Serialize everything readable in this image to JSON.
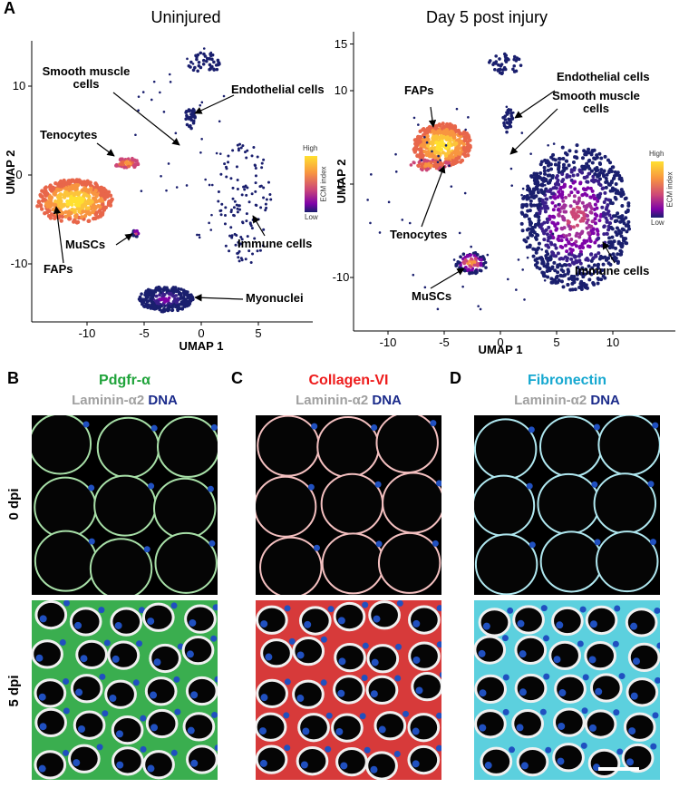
{
  "panel_a": {
    "letter": "A",
    "uninjured": {
      "title": "Uninjured",
      "xlabel": "UMAP 1",
      "ylabel": "UMAP 2",
      "xticks": [
        -10,
        -5,
        0,
        5
      ],
      "yticks": [
        10,
        0,
        -10
      ],
      "labels": [
        "Smooth muscle cells",
        "Endothelial cells",
        "Tenocytes",
        "FAPs",
        "MuSCs",
        "Immune cells",
        "Myonuclei"
      ]
    },
    "injured": {
      "title": "Day 5 post injury",
      "xlabel": "UMAP 1",
      "ylabel": "UMAP 2",
      "xticks": [
        -10,
        -5,
        0,
        5,
        10
      ],
      "yticks": [
        15,
        10,
        0,
        -10
      ],
      "labels": [
        "FAPs",
        "Endothelial cells",
        "Smooth muscle cells",
        "Tenocytes",
        "Immune cells",
        "MuSCs"
      ]
    },
    "legend": {
      "high": "High",
      "low": "Low",
      "title": "ECM index"
    }
  },
  "panels": [
    {
      "letter": "B",
      "stain": "Pdgfr-α",
      "laminin": "Laminin-α2",
      "dna": "DNA"
    },
    {
      "letter": "C",
      "stain": "Collagen-VI",
      "laminin": "Laminin-α2",
      "dna": "DNA"
    },
    {
      "letter": "D",
      "stain": "Fibronectin",
      "laminin": "Laminin-α2",
      "dna": "DNA"
    }
  ],
  "rows": [
    "0 dpi",
    "5 dpi"
  ]
}
